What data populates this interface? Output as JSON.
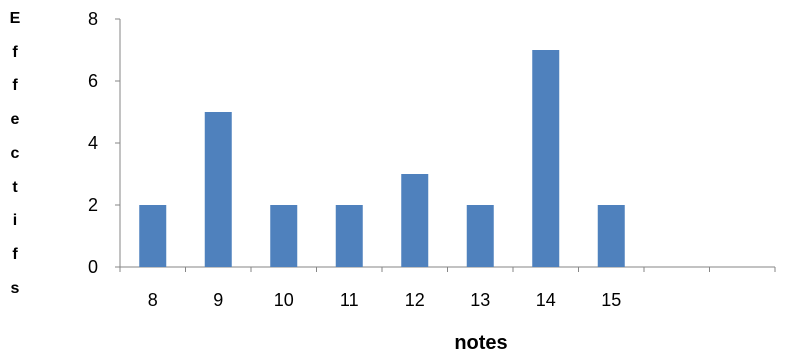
{
  "chart_data": {
    "type": "bar",
    "title": "",
    "xlabel": "notes",
    "ylabel": "Effectifs",
    "categories": [
      "8",
      "9",
      "10",
      "11",
      "12",
      "13",
      "14",
      "15",
      "",
      ""
    ],
    "values": [
      2,
      5,
      2,
      2,
      3,
      2,
      7,
      2,
      null,
      null
    ],
    "ylim": [
      0,
      8
    ],
    "yticks": [
      "0",
      "2",
      "4",
      "6",
      "8"
    ],
    "bar_color": "#4f81bd",
    "grid": false,
    "legend": "none"
  }
}
